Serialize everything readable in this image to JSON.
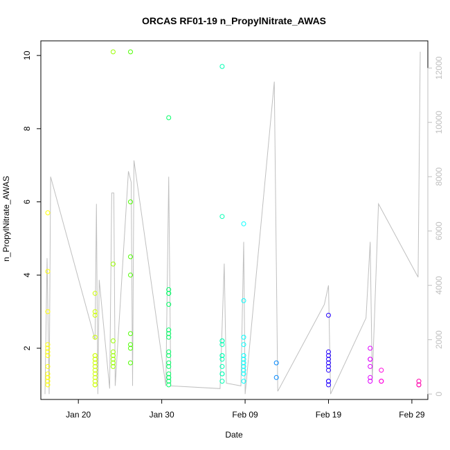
{
  "chart_data": {
    "type": "scatter",
    "title": "ORCAS RF01-19 n_PropylNitrate_AWAS",
    "xlabel": "Date",
    "ylabel": "n_PropylNitrate_AWAS",
    "x_ticks": [
      {
        "date": "2016-01-20",
        "label": "Jan 20"
      },
      {
        "date": "2016-01-30",
        "label": "Jan 30"
      },
      {
        "date": "2016-02-09",
        "label": "Feb 09"
      },
      {
        "date": "2016-02-19",
        "label": "Feb 19"
      },
      {
        "date": "2016-02-29",
        "label": "Feb 29"
      }
    ],
    "xlim": [
      "2016-01-15T12:00",
      "2016-03-01T22:00"
    ],
    "ylim_left": [
      0.6,
      10.4
    ],
    "y_ticks_left": [
      2,
      4,
      6,
      8,
      10
    ],
    "ylim_right": [
      -200,
      13000
    ],
    "y_ticks_right": [
      0,
      2000,
      4000,
      6000,
      8000,
      10000,
      12000
    ],
    "right_axis_color": "#bfbfbf",
    "altitude_line_color": "#bfbfbf",
    "flights": [
      {
        "flight": "RF01",
        "date": "2016-01-16",
        "t": "2016-01-16T08:00",
        "color": "#ffff00",
        "values": [
          1.0,
          1.1,
          1.2,
          1.2,
          1.3,
          1.5,
          1.8,
          1.9,
          2.0,
          2.1,
          3.0,
          4.1,
          5.7
        ]
      },
      {
        "flight": "RF02",
        "date": "2016-01-22",
        "t": "2016-01-22T00:00",
        "color": "#ccff00",
        "values": [
          1.0,
          1.0,
          1.1,
          1.2,
          1.3,
          1.4,
          1.5,
          1.6,
          1.7,
          1.7,
          1.8,
          1.8,
          2.3,
          2.9,
          3.0,
          3.5
        ]
      },
      {
        "flight": "RF03",
        "date": "2016-01-24",
        "t": "2016-01-24T04:00",
        "color": "#99ff00",
        "values": [
          1.5,
          1.6,
          1.7,
          1.8,
          1.9,
          2.2,
          4.3,
          10.1
        ]
      },
      {
        "flight": "RF04",
        "date": "2016-01-26",
        "t": "2016-01-26T06:00",
        "color": "#4dff00",
        "values": [
          1.6,
          2.0,
          2.1,
          2.4,
          4.0,
          4.5,
          6.0,
          10.1
        ]
      },
      {
        "flight": "RF05",
        "date": "2016-01-30",
        "t": "2016-01-30T20:00",
        "color": "#00ff66",
        "values": [
          1.0,
          1.1,
          1.2,
          1.2,
          1.3,
          1.5,
          1.6,
          1.8,
          1.9,
          2.3,
          2.4,
          2.5,
          3.2,
          3.5,
          3.5,
          3.6,
          8.3
        ]
      },
      {
        "flight": "RF06",
        "date": "2016-02-06",
        "t": "2016-02-06T06:00",
        "color": "#00ffb3",
        "values": [
          1.1,
          1.3,
          1.3,
          1.5,
          1.7,
          1.8,
          1.8,
          2.1,
          2.2,
          2.2,
          5.6,
          9.7
        ]
      },
      {
        "flight": "RF07",
        "date": "2016-02-08",
        "t": "2016-02-08T20:00",
        "color": "#00ffff",
        "values": [
          1.1,
          1.3,
          1.4,
          1.5,
          1.6,
          1.7,
          1.8,
          2.1,
          2.3,
          3.3,
          5.4
        ]
      },
      {
        "flight": "RF08",
        "date": "2016-02-12",
        "t": "2016-02-12T18:00",
        "color": "#0088ff",
        "values": [
          1.2,
          1.6
        ]
      },
      {
        "flight": "RF09",
        "date": "2016-02-19",
        "t": "2016-02-19T00:00",
        "color": "#2200ff",
        "values": [
          1.0,
          1.1,
          1.1,
          1.4,
          1.5,
          1.6,
          1.7,
          1.8,
          1.9,
          2.9
        ]
      },
      {
        "flight": "RF10",
        "date": "2016-02-24",
        "t": "2016-02-24T00:00",
        "color": "#dd00ff",
        "values": [
          1.1,
          1.2,
          1.5,
          1.7,
          1.7,
          2.0
        ]
      },
      {
        "flight": "RF11",
        "date": "2016-02-25",
        "t": "2016-02-25T08:00",
        "color": "#ff00dd",
        "values": [
          1.1,
          1.1,
          1.4
        ]
      },
      {
        "flight": "RF12",
        "date": "2016-02-29",
        "t": "2016-02-29T20:00",
        "color": "#ff00aa",
        "values": [
          1.0,
          1.0,
          1.1
        ]
      }
    ],
    "altitude_trace": [
      [
        "2016-01-16T00:00",
        0
      ],
      [
        "2016-01-16T06:00",
        5000
      ],
      [
        "2016-01-16T12:00",
        0
      ],
      [
        "2016-01-16T16:00",
        8000
      ],
      [
        "2016-01-22T00:00",
        2000
      ],
      [
        "2016-01-22T04:00",
        7000
      ],
      [
        "2016-01-22T08:00",
        0
      ],
      [
        "2016-01-22T12:00",
        4200
      ],
      [
        "2016-01-23T18:00",
        200
      ],
      [
        "2016-01-24T00:00",
        7400
      ],
      [
        "2016-01-24T06:00",
        7400
      ],
      [
        "2016-01-24T10:00",
        300
      ],
      [
        "2016-01-26T00:00",
        8200
      ],
      [
        "2016-01-26T08:00",
        7800
      ],
      [
        "2016-01-26T12:00",
        300
      ],
      [
        "2016-01-26T16:00",
        8600
      ],
      [
        "2016-01-30T12:00",
        300
      ],
      [
        "2016-01-30T20:00",
        8000
      ],
      [
        "2016-01-31T02:00",
        300
      ],
      [
        "2016-02-06T00:00",
        200
      ],
      [
        "2016-02-06T12:00",
        4800
      ],
      [
        "2016-02-06T18:00",
        400
      ],
      [
        "2016-02-08T12:00",
        300
      ],
      [
        "2016-02-08T20:00",
        5600
      ],
      [
        "2016-02-09T00:00",
        0
      ],
      [
        "2016-02-12T12:00",
        11500
      ],
      [
        "2016-02-12T22:00",
        100
      ],
      [
        "2016-02-18T12:00",
        3300
      ],
      [
        "2016-02-19T00:00",
        4000
      ],
      [
        "2016-02-19T06:00",
        0
      ],
      [
        "2016-02-23T12:00",
        2800
      ],
      [
        "2016-02-24T00:00",
        5600
      ],
      [
        "2016-02-24T06:00",
        500
      ],
      [
        "2016-02-25T00:00",
        7000
      ],
      [
        "2016-02-29T18:00",
        4300
      ],
      [
        "2016-03-01T00:00",
        12600
      ]
    ],
    "grid": false,
    "legend": "none"
  }
}
